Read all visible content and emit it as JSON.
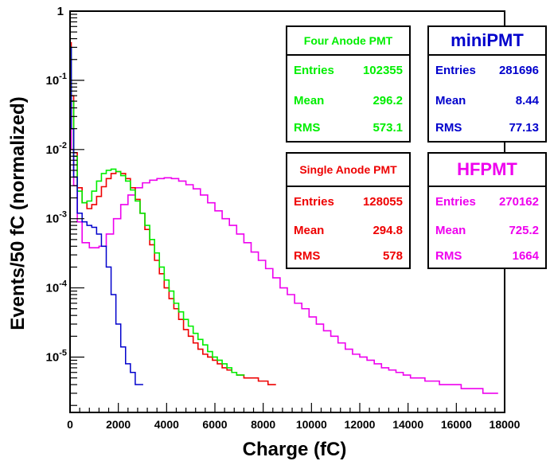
{
  "chart_data": {
    "type": "histogram",
    "xlabel": "Charge (fC)",
    "ylabel": "Events/50 fC (normalized)",
    "xlim": [
      0,
      18000
    ],
    "ylim_log10": [
      -5.8,
      0
    ],
    "y_scale": "log",
    "x_ticks": [
      0,
      2000,
      4000,
      6000,
      8000,
      10000,
      12000,
      14000,
      16000,
      18000
    ],
    "x_tick_labels": [
      "0",
      "2000",
      "4000",
      "6000",
      "8000",
      "10000",
      "12000",
      "14000",
      "16000",
      "18000"
    ],
    "y_tick_labels": [
      {
        "base": "1",
        "exp": ""
      },
      {
        "base": "10",
        "exp": "-1"
      },
      {
        "base": "10",
        "exp": "-2"
      },
      {
        "base": "10",
        "exp": "-3"
      },
      {
        "base": "10",
        "exp": "-4"
      },
      {
        "base": "10",
        "exp": "-5"
      }
    ],
    "y_tick_exponents": [
      0,
      -1,
      -2,
      -3,
      -4,
      -5
    ],
    "series": [
      {
        "name": "HFPMT",
        "color": "#ee00ee",
        "x": [
          0,
          50,
          150,
          300,
          500,
          800,
          1200,
          1500,
          1800,
          2100,
          2400,
          2700,
          3000,
          3300,
          3600,
          3900,
          4200,
          4500,
          4800,
          5100,
          5400,
          5700,
          6000,
          6300,
          6600,
          6900,
          7200,
          7500,
          7800,
          8100,
          8400,
          8700,
          9000,
          9300,
          9600,
          9900,
          10200,
          10500,
          10800,
          11100,
          11400,
          11700,
          12000,
          12300,
          12600,
          12900,
          13200,
          13500,
          13800,
          14100,
          14400,
          14700,
          15000,
          15300,
          15600,
          15900,
          16200,
          16500,
          16800,
          17100,
          17400
        ],
        "y": [
          0.2,
          0.01,
          0.003,
          0.0009,
          0.00045,
          0.00038,
          0.0004,
          0.0006,
          0.001,
          0.0016,
          0.0022,
          0.0028,
          0.0033,
          0.0036,
          0.0038,
          0.0039,
          0.0038,
          0.0035,
          0.0031,
          0.0027,
          0.0022,
          0.0017,
          0.0013,
          0.001,
          0.0008,
          0.0006,
          0.00045,
          0.00033,
          0.00025,
          0.00019,
          0.00014,
          0.0001,
          8e-05,
          6e-05,
          5e-05,
          3.8e-05,
          3e-05,
          2.4e-05,
          2e-05,
          1.6e-05,
          1.3e-05,
          1.1e-05,
          1e-05,
          9e-06,
          8e-06,
          7e-06,
          6.5e-06,
          6e-06,
          5.5e-06,
          5e-06,
          5e-06,
          4.5e-06,
          4.5e-06,
          4e-06,
          4e-06,
          4e-06,
          3.5e-06,
          3.5e-06,
          3.5e-06,
          3e-06,
          3e-06
        ]
      },
      {
        "name": "Single Anode PMT",
        "color": "#ee0000",
        "x": [
          0,
          50,
          150,
          300,
          500,
          700,
          900,
          1100,
          1300,
          1500,
          1700,
          1900,
          2100,
          2300,
          2500,
          2700,
          2900,
          3100,
          3300,
          3500,
          3700,
          3900,
          4100,
          4300,
          4500,
          4700,
          4900,
          5100,
          5300,
          5500,
          5700,
          5900,
          6100,
          6300,
          6500,
          6700,
          6900,
          7200,
          7500,
          7800,
          8200
        ],
        "y": [
          0.35,
          0.06,
          0.009,
          0.0028,
          0.0017,
          0.0014,
          0.0016,
          0.0021,
          0.0029,
          0.0038,
          0.0045,
          0.0048,
          0.0045,
          0.0038,
          0.0028,
          0.0019,
          0.0012,
          0.0007,
          0.00042,
          0.00025,
          0.00016,
          0.0001,
          7e-05,
          5e-05,
          3.5e-05,
          2.5e-05,
          2e-05,
          1.6e-05,
          1.3e-05,
          1.1e-05,
          1e-05,
          9e-06,
          8e-06,
          7e-06,
          6.5e-06,
          6e-06,
          5.5e-06,
          5e-06,
          5e-06,
          4.5e-06,
          4e-06
        ]
      },
      {
        "name": "Four Anode PMT",
        "color": "#00ee00",
        "x": [
          0,
          50,
          150,
          300,
          500,
          700,
          900,
          1100,
          1300,
          1500,
          1700,
          1900,
          2100,
          2300,
          2500,
          2700,
          2900,
          3100,
          3300,
          3500,
          3700,
          3900,
          4100,
          4300,
          4500,
          4700,
          4900,
          5100,
          5300,
          5500,
          5700,
          5900,
          6100,
          6300,
          6500,
          6700,
          6900
        ],
        "y": [
          0.3,
          0.05,
          0.008,
          0.0025,
          0.0017,
          0.0018,
          0.0025,
          0.0035,
          0.0045,
          0.005,
          0.0052,
          0.0048,
          0.0042,
          0.0035,
          0.0026,
          0.0018,
          0.0012,
          0.0008,
          0.0005,
          0.00032,
          0.0002,
          0.00013,
          9e-05,
          6e-05,
          4.5e-05,
          3.5e-05,
          2.8e-05,
          2.2e-05,
          1.8e-05,
          1.5e-05,
          1.2e-05,
          1e-05,
          9e-06,
          8e-06,
          7e-06,
          6e-06,
          5.5e-06
        ]
      },
      {
        "name": "miniPMT",
        "color": "#0000cc",
        "x": [
          0,
          50,
          150,
          300,
          500,
          700,
          900,
          1100,
          1300,
          1500,
          1700,
          1900,
          2100,
          2300,
          2500,
          2700
        ],
        "y": [
          0.3,
          0.02,
          0.004,
          0.0012,
          0.0009,
          0.0008,
          0.00075,
          0.0006,
          0.0004,
          0.0002,
          8e-05,
          3e-05,
          1.4e-05,
          8e-06,
          6e-06,
          4e-06
        ]
      }
    ],
    "stats": [
      {
        "id": "four",
        "title": "Four Anode PMT",
        "entries": "102355",
        "mean": "296.2",
        "rms": "573.1"
      },
      {
        "id": "mini",
        "title": "miniPMT",
        "entries": "281696",
        "mean": "8.44",
        "rms": "77.13"
      },
      {
        "id": "single",
        "title": "Single Anode PMT",
        "entries": "128055",
        "mean": "294.8",
        "rms": "578"
      },
      {
        "id": "hf",
        "title": "HFPMT",
        "entries": "270162",
        "mean": "725.2",
        "rms": "1664"
      }
    ],
    "stats_labels": {
      "entries": "Entries",
      "mean": "Mean",
      "rms": "RMS"
    }
  }
}
